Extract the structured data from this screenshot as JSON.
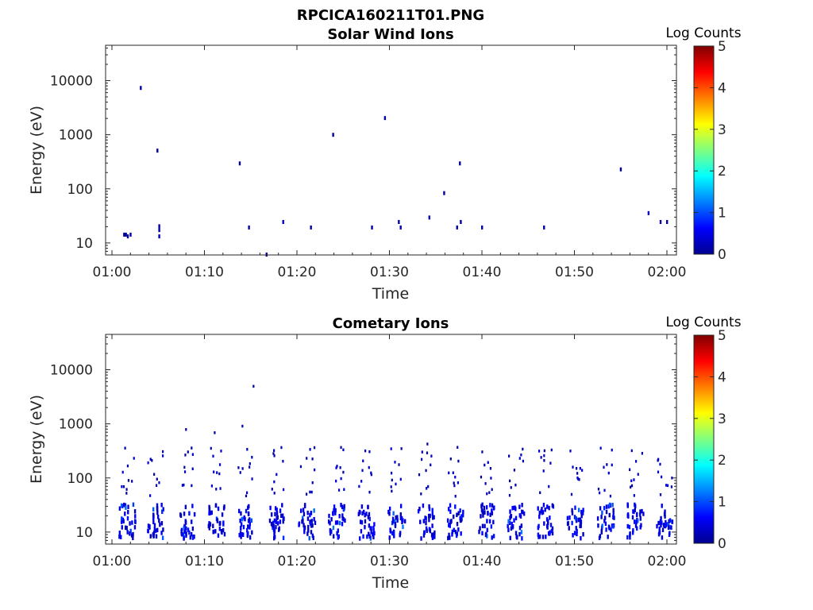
{
  "figure_title": "RPCICA160211T01.PNG",
  "colorbar": {
    "label": "Log Counts",
    "ticks": [
      "0",
      "1",
      "2",
      "3",
      "4",
      "5"
    ],
    "range": [
      0,
      5
    ],
    "colormap": "jet"
  },
  "chart_data": [
    {
      "type": "heatmap",
      "title": "Solar Wind Ions",
      "xlabel": "Time",
      "ylabel": "Energy (eV)",
      "x_ticks": [
        "01:00",
        "01:10",
        "01:20",
        "01:30",
        "01:40",
        "01:50",
        "02:00"
      ],
      "y_ticks": [
        "10",
        "100",
        "1000",
        "10000"
      ],
      "y_scale": "log",
      "xlim": [
        "01:00",
        "02:00"
      ],
      "ylim": [
        6,
        45000
      ],
      "colorbar_label": "Log Counts",
      "points": [
        {
          "t": 1.3,
          "e": 14,
          "z": 0.15
        },
        {
          "t": 1.5,
          "e": 14,
          "z": 0.15
        },
        {
          "t": 1.7,
          "e": 13,
          "z": 0.15
        },
        {
          "t": 2.0,
          "e": 14,
          "z": 0.15
        },
        {
          "t": 3.1,
          "e": 7200,
          "z": 0.15
        },
        {
          "t": 4.9,
          "e": 500,
          "z": 0.15
        },
        {
          "t": 5.1,
          "e": 13,
          "z": 0.2
        },
        {
          "t": 5.1,
          "e": 17,
          "z": 0.2
        },
        {
          "t": 5.1,
          "e": 20,
          "z": 0.2
        },
        {
          "t": 13.8,
          "e": 290,
          "z": 0.15
        },
        {
          "t": 14.8,
          "e": 19,
          "z": 0.2
        },
        {
          "t": 16.7,
          "e": 6,
          "z": 0.15
        },
        {
          "t": 18.5,
          "e": 24,
          "z": 0.3
        },
        {
          "t": 21.5,
          "e": 19,
          "z": 0.2
        },
        {
          "t": 23.9,
          "e": 980,
          "z": 0.15
        },
        {
          "t": 28.1,
          "e": 19,
          "z": 0.2
        },
        {
          "t": 29.5,
          "e": 2000,
          "z": 0.2
        },
        {
          "t": 31.0,
          "e": 24,
          "z": 0.2
        },
        {
          "t": 31.2,
          "e": 19,
          "z": 0.2
        },
        {
          "t": 34.3,
          "e": 29,
          "z": 0.2
        },
        {
          "t": 35.9,
          "e": 82,
          "z": 0.15
        },
        {
          "t": 37.3,
          "e": 19,
          "z": 0.2
        },
        {
          "t": 37.6,
          "e": 290,
          "z": 0.15
        },
        {
          "t": 37.7,
          "e": 24,
          "z": 0.2
        },
        {
          "t": 40.0,
          "e": 19,
          "z": 0.2
        },
        {
          "t": 46.7,
          "e": 19,
          "z": 0.2
        },
        {
          "t": 55.0,
          "e": 225,
          "z": 0.15
        },
        {
          "t": 58.0,
          "e": 35,
          "z": 0.3
        },
        {
          "t": 59.3,
          "e": 24,
          "z": 0.2
        },
        {
          "t": 60.0,
          "e": 24,
          "z": 0.2
        }
      ]
    },
    {
      "type": "heatmap",
      "title": "Cometary Ions",
      "xlabel": "Time",
      "ylabel": "Energy (eV)",
      "x_ticks": [
        "01:00",
        "01:10",
        "01:20",
        "01:30",
        "01:40",
        "01:50",
        "02:00"
      ],
      "y_ticks": [
        "10",
        "100",
        "1000",
        "10000"
      ],
      "y_scale": "log",
      "xlim": [
        "01:00",
        "02:00"
      ],
      "ylim": [
        6,
        45000
      ],
      "colorbar_label": "Log Counts",
      "bursts_minutes": [
        1.7,
        4.7,
        8.1,
        11.3,
        14.4,
        17.8,
        21.1,
        24.3,
        27.5,
        30.8,
        34.0,
        37.2,
        40.5,
        43.7,
        46.9,
        50.1,
        53.4,
        56.6,
        59.8
      ],
      "points": [
        {
          "t": 15.3,
          "e": 4900,
          "z": 0.15
        },
        {
          "t": 14.1,
          "e": 900,
          "z": 0.2
        },
        {
          "t": 8.0,
          "e": 780,
          "z": 0.2
        },
        {
          "t": 11.1,
          "e": 680,
          "z": 0.15
        },
        {
          "t": 34.1,
          "e": 420,
          "z": 0.2
        }
      ]
    }
  ]
}
